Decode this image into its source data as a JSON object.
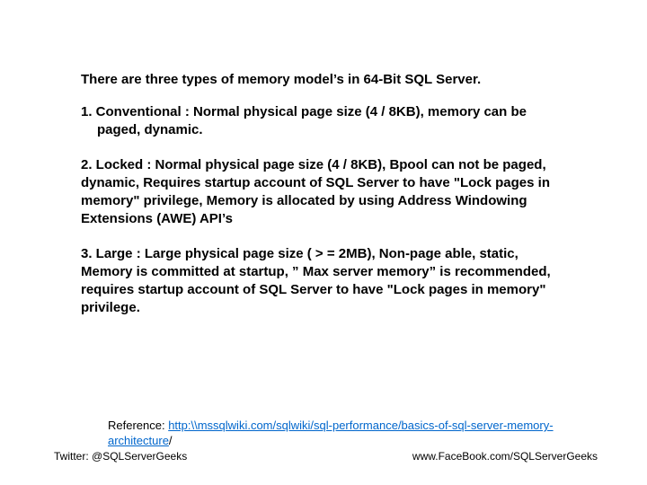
{
  "intro": "There are three types of memory model’s in 64-Bit SQL Server.",
  "items": [
    "1.  Conventional : Normal physical page size (4 / 8KB), memory can be paged, dynamic.",
    "2.  Locked : Normal physical page size (4 / 8KB), Bpool can not be paged, dynamic, Requires startup account of SQL Server to have \"Lock pages in memory\" privilege, Memory is allocated by using Address Windowing Extensions (AWE) API’s",
    "3.  Large : Large physical page size ( > = 2MB), Non-page able, static, Memory is committed at startup, ” Max server memory” is recommended, requires startup account of SQL Server to have \"Lock pages in memory\" privilege."
  ],
  "reference_label": "Reference: ",
  "reference_link_text": "http:\\\\mssqlwiki.com/sqlwiki/sql-performance/basics-of-sql-server-memory-architecture",
  "reference_trail": "/",
  "footer_left": "Twitter: @SQLServerGeeks",
  "footer_right": "www.FaceBook.com/SQLServerGeeks",
  "colors": {
    "text": "#000000",
    "link": "#0066cc",
    "background": "#ffffff"
  },
  "fontsize": {
    "body": 15,
    "reference": 13,
    "footer": 12
  }
}
